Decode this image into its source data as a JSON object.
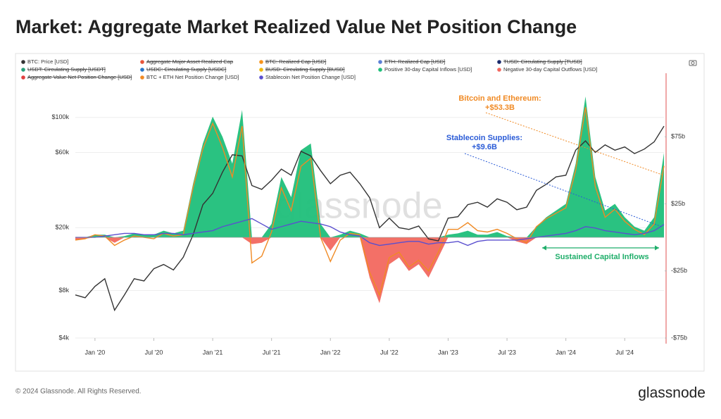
{
  "chart_data": {
    "type": "line",
    "title": "Market: Aggregate Market Realized Value Net Position Change",
    "footer": "© 2024 Glassnode. All Rights Reserved.",
    "logo": "glassnode",
    "watermark": "glassnode",
    "x": [
      "2019-11",
      "2019-12",
      "2020-01",
      "2020-02",
      "2020-03",
      "2020-04",
      "2020-05",
      "2020-06",
      "2020-07",
      "2020-08",
      "2020-09",
      "2020-10",
      "2020-11",
      "2020-12",
      "2021-01",
      "2021-02",
      "2021-03",
      "2021-04",
      "2021-05",
      "2021-06",
      "2021-07",
      "2021-08",
      "2021-09",
      "2021-10",
      "2021-11",
      "2021-12",
      "2022-01",
      "2022-02",
      "2022-03",
      "2022-04",
      "2022-05",
      "2022-06",
      "2022-07",
      "2022-08",
      "2022-09",
      "2022-10",
      "2022-11",
      "2022-12",
      "2023-01",
      "2023-02",
      "2023-03",
      "2023-04",
      "2023-05",
      "2023-06",
      "2023-07",
      "2023-08",
      "2023-09",
      "2023-10",
      "2023-11",
      "2023-12",
      "2024-01",
      "2024-02",
      "2024-03",
      "2024-04",
      "2024-05",
      "2024-06",
      "2024-07",
      "2024-08",
      "2024-09",
      "2024-10",
      "2024-11"
    ],
    "xlim": [
      "2019-11",
      "2024-11"
    ],
    "xticks": [
      {
        "value": "2020-01",
        "label": "Jan '20"
      },
      {
        "value": "2020-07",
        "label": "Jul '20"
      },
      {
        "value": "2021-01",
        "label": "Jan '21"
      },
      {
        "value": "2021-07",
        "label": "Jul '21"
      },
      {
        "value": "2022-01",
        "label": "Jan '22"
      },
      {
        "value": "2022-07",
        "label": "Jul '22"
      },
      {
        "value": "2023-01",
        "label": "Jan '23"
      },
      {
        "value": "2023-07",
        "label": "Jul '23"
      },
      {
        "value": "2024-01",
        "label": "Jan '24"
      },
      {
        "value": "2024-07",
        "label": "Jul '24"
      }
    ],
    "ylim": [
      4000,
      165000
    ],
    "log_y": true,
    "yticks": [
      {
        "value": 4000,
        "label": "$4k"
      },
      {
        "value": 8000,
        "label": "$8k"
      },
      {
        "value": 20000,
        "label": "$20k"
      },
      {
        "value": 60000,
        "label": "$60k"
      },
      {
        "value": 100000,
        "label": "$100k"
      }
    ],
    "y2lim": [
      -75,
      115
    ],
    "y2ticks": [
      {
        "value": 75,
        "label": "$75b"
      },
      {
        "value": 25,
        "label": "$25b"
      },
      {
        "value": -25,
        "label": "-$25b"
      },
      {
        "value": -75,
        "label": "-$75b"
      }
    ],
    "grid": true,
    "series": [
      {
        "name": "BTC: Price [USD]",
        "color": "#333333",
        "kind": "line",
        "axis": "y",
        "values": [
          7500,
          7200,
          8500,
          9500,
          6000,
          7500,
          9500,
          9200,
          11000,
          11700,
          10800,
          13000,
          18000,
          28000,
          33000,
          45000,
          58000,
          57000,
          37000,
          35000,
          40000,
          47000,
          43000,
          61000,
          57000,
          46000,
          38000,
          43000,
          45000,
          38000,
          31000,
          20000,
          23000,
          20000,
          19500,
          20500,
          17000,
          16500,
          23000,
          23500,
          28000,
          29000,
          27000,
          30500,
          29000,
          26000,
          27000,
          34500,
          37700,
          42000,
          43000,
          62000,
          71000,
          60000,
          67000,
          62000,
          65000,
          59000,
          63000,
          70000,
          88000
        ]
      },
      {
        "name": "Aggregate Major Asset Realized Cap",
        "color": "#e8553a",
        "hidden": true
      },
      {
        "name": "BTC: Realized Cap [USD]",
        "color": "#f7931a",
        "hidden": true
      },
      {
        "name": "ETH: Realized Cap [USD]",
        "color": "#5b7fd6",
        "hidden": true
      },
      {
        "name": "TUSD: Circulating Supply [TUSD]",
        "color": "#1a2a6c",
        "hidden": true
      },
      {
        "name": "USDT: Circulating Supply [USDT]",
        "color": "#26a17b",
        "hidden": true
      },
      {
        "name": "USDC: Circulating Supply [USDC]",
        "color": "#2775ca",
        "hidden": true
      },
      {
        "name": "BUSD: Circulating Supply [BUSD]",
        "color": "#f0b90b",
        "hidden": true
      },
      {
        "name": "Positive 30-day Capital Inflows [USD]",
        "color": "#1fbf7a",
        "kind": "area",
        "axis": "y2",
        "values": [
          0,
          0,
          2,
          2,
          0,
          1,
          3,
          2,
          2,
          5,
          3,
          5,
          40,
          70,
          90,
          75,
          55,
          95,
          0,
          0,
          10,
          45,
          30,
          65,
          70,
          10,
          0,
          2,
          5,
          3,
          0,
          0,
          0,
          0,
          0,
          0,
          0,
          0,
          2,
          3,
          5,
          2,
          2,
          4,
          1,
          0,
          0,
          8,
          15,
          20,
          25,
          55,
          105,
          45,
          20,
          25,
          15,
          8,
          5,
          15,
          63
        ]
      },
      {
        "name": "Negative 30-day Capital Outflows [USD]",
        "color": "#f2685f",
        "kind": "area",
        "axis": "y2",
        "values": [
          -2,
          -1,
          0,
          0,
          -4,
          0,
          0,
          0,
          0,
          0,
          0,
          0,
          0,
          0,
          0,
          0,
          0,
          0,
          -5,
          -4,
          0,
          0,
          0,
          0,
          0,
          0,
          -10,
          0,
          0,
          0,
          -30,
          -49,
          -20,
          -15,
          -25,
          -20,
          -30,
          -15,
          0,
          0,
          0,
          0,
          0,
          0,
          0,
          -3,
          -5,
          0,
          0,
          0,
          0,
          0,
          0,
          0,
          0,
          0,
          0,
          0,
          0,
          0,
          0
        ]
      },
      {
        "name": "Aggregate Value Net Position Change [USD]",
        "color": "#e04040",
        "hidden": true
      },
      {
        "name": "BTC + ETH Net Position Change [USD]",
        "color": "#f08a24",
        "kind": "line",
        "axis": "y2",
        "values": [
          -2,
          -1,
          2,
          1,
          -6,
          -2,
          1,
          0,
          -1,
          3,
          1,
          2,
          37,
          66,
          85,
          67,
          45,
          83,
          -19,
          -14,
          4,
          37,
          20,
          53,
          59,
          0,
          -18,
          -2,
          3,
          2,
          -26,
          -43,
          -15,
          -11,
          -22,
          -17,
          -25,
          -11,
          6,
          6,
          11,
          5,
          4,
          6,
          3,
          -1,
          -4,
          8,
          14,
          18,
          22,
          50,
          97,
          38,
          15,
          21,
          12,
          6,
          2,
          10,
          53.3
        ]
      },
      {
        "name": "Stablecoin Net Position Change [USD]",
        "color": "#5a4fcf",
        "kind": "line",
        "axis": "y2",
        "values": [
          0,
          0,
          0,
          1,
          2,
          3,
          3,
          2,
          2,
          3,
          3,
          2,
          3,
          4,
          5,
          8,
          10,
          12,
          14,
          10,
          6,
          8,
          10,
          12,
          11,
          10,
          8,
          4,
          2,
          1,
          -4,
          -6,
          -5,
          -4,
          -3,
          -3,
          -5,
          -4,
          -4,
          -3,
          -6,
          -3,
          -2,
          -2,
          -2,
          -2,
          -1,
          0,
          1,
          2,
          3,
          5,
          8,
          7,
          5,
          4,
          3,
          2,
          3,
          5,
          9.6
        ]
      }
    ],
    "annotations": [
      {
        "text": "Bitcoin and Ethereum:",
        "color": "#f08a24"
      },
      {
        "text": "+$53.3B",
        "color": "#f08a24"
      },
      {
        "text": "Stablecoin Supplies:",
        "color": "#2a5bd7"
      },
      {
        "text": "+$9.6B",
        "color": "#2a5bd7"
      },
      {
        "text": "Sustained Capital Inflows",
        "color": "#1fae6a"
      }
    ]
  }
}
